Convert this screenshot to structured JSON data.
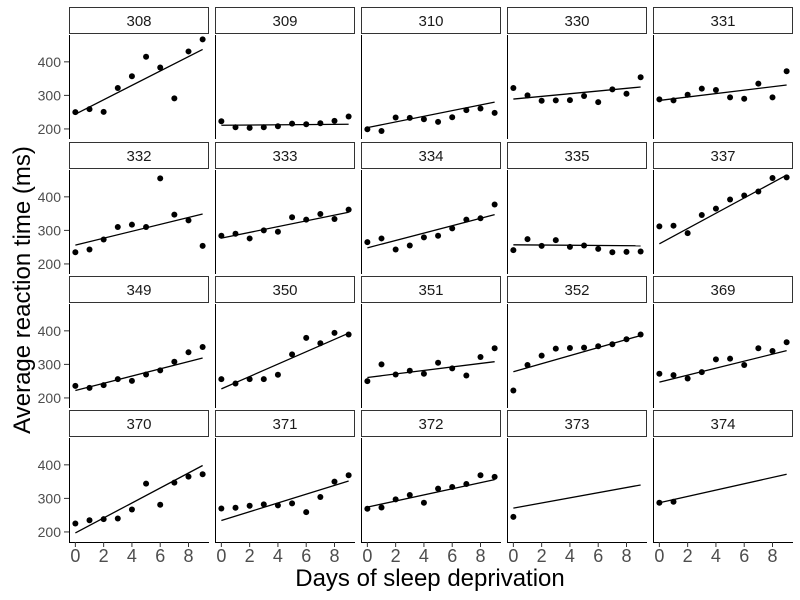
{
  "chart_data": {
    "type": "scatter",
    "title": "",
    "xlabel": "Days of sleep deprivation",
    "ylabel": "Average reaction time (ms)",
    "xlim": [
      -0.45,
      9.45
    ],
    "ylim": [
      170,
      480
    ],
    "x_ticks": [
      0,
      2,
      4,
      6,
      8
    ],
    "y_ticks": [
      200,
      300,
      400
    ],
    "grid": false,
    "x": [
      0,
      1,
      2,
      3,
      4,
      5,
      6,
      7,
      8,
      9
    ],
    "panels": [
      {
        "name": "308",
        "values": [
          250,
          259,
          251,
          322,
          357,
          415,
          383,
          291,
          431,
          467
        ],
        "fit": [
          244,
          437
        ]
      },
      {
        "name": "309",
        "values": [
          223,
          205,
          203,
          205,
          208,
          216,
          214,
          217,
          224,
          237
        ],
        "fit": [
          211,
          214
        ]
      },
      {
        "name": "310",
        "values": [
          199,
          194,
          234,
          233,
          229,
          221,
          235,
          256,
          261,
          248
        ],
        "fit": [
          204,
          280
        ]
      },
      {
        "name": "330",
        "values": [
          322,
          300,
          284,
          285,
          286,
          298,
          280,
          318,
          305,
          354
        ],
        "fit": [
          289,
          325
        ]
      },
      {
        "name": "331",
        "values": [
          288,
          285,
          302,
          320,
          316,
          294,
          290,
          335,
          294,
          372
        ],
        "fit": [
          285,
          331
        ]
      },
      {
        "name": "332",
        "values": [
          235,
          243,
          273,
          310,
          317,
          310,
          455,
          347,
          330,
          254
        ],
        "fit": [
          256,
          349
        ]
      },
      {
        "name": "333",
        "values": [
          284,
          290,
          276,
          300,
          296,
          339,
          332,
          349,
          334,
          362
        ],
        "fit": [
          277,
          354
        ]
      },
      {
        "name": "334",
        "values": [
          265,
          276,
          243,
          255,
          279,
          284,
          306,
          332,
          336,
          377
        ],
        "fit": [
          248,
          347
        ]
      },
      {
        "name": "335",
        "values": [
          241,
          274,
          254,
          271,
          251,
          255,
          245,
          235,
          236,
          237
        ],
        "fit": [
          257,
          254
        ]
      },
      {
        "name": "337",
        "values": [
          312,
          314,
          292,
          346,
          365,
          392,
          404,
          416,
          456,
          458
        ],
        "fit": [
          260,
          465
        ]
      },
      {
        "name": "349",
        "values": [
          236,
          230,
          238,
          256,
          251,
          270,
          282,
          308,
          336,
          352
        ],
        "fit": [
          222,
          319
        ]
      },
      {
        "name": "350",
        "values": [
          256,
          243,
          256,
          256,
          269,
          330,
          379,
          363,
          394,
          389
        ],
        "fit": [
          227,
          393
        ]
      },
      {
        "name": "351",
        "values": [
          250,
          300,
          270,
          281,
          272,
          305,
          288,
          267,
          322,
          348
        ],
        "fit": [
          261,
          308
        ]
      },
      {
        "name": "352",
        "values": [
          222,
          298,
          326,
          347,
          349,
          350,
          354,
          360,
          375,
          389
        ],
        "fit": [
          278,
          386
        ]
      },
      {
        "name": "369",
        "values": [
          272,
          268,
          258,
          277,
          315,
          317,
          298,
          348,
          340,
          366
        ],
        "fit": [
          247,
          341
        ]
      },
      {
        "name": "370",
        "values": [
          225,
          235,
          238,
          240,
          267,
          344,
          281,
          347,
          365,
          372
        ],
        "fit": [
          197,
          398
        ]
      },
      {
        "name": "371",
        "values": [
          270,
          272,
          278,
          282,
          279,
          285,
          259,
          304,
          350,
          369
        ],
        "fit": [
          234,
          352
        ]
      },
      {
        "name": "372",
        "values": [
          269,
          273,
          297,
          310,
          287,
          329,
          334,
          343,
          369,
          364
        ],
        "fit": [
          274,
          356
        ]
      },
      {
        "name": "373",
        "values": [
          245,
          null,
          null,
          null,
          null,
          null,
          null,
          null,
          null,
          null
        ],
        "fit": [
          271,
          340
        ]
      },
      {
        "name": "374",
        "values": [
          287,
          290,
          null,
          null,
          null,
          null,
          null,
          null,
          null,
          null
        ],
        "fit": [
          287,
          372
        ]
      }
    ]
  }
}
